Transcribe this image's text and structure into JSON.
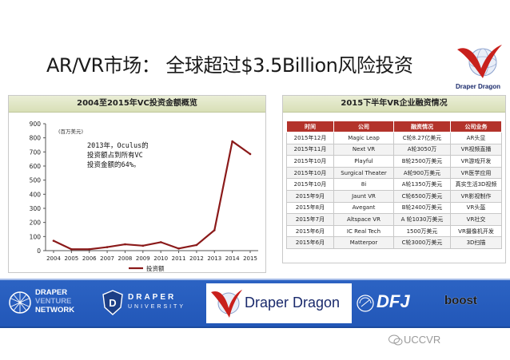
{
  "slide": {
    "title": "AR/VR市场： 全球超过$3.5Billion风险投资",
    "logo_text": "Draper Dragon"
  },
  "chart_data": {
    "type": "line",
    "title": "2004至2015年VC投资金额概览",
    "ylabel": "(百万美元)",
    "xlabel": "",
    "x": [
      "2004",
      "2005",
      "2006",
      "2007",
      "2008",
      "2009",
      "2010",
      "2011",
      "2012",
      "2013",
      "2014",
      "2015"
    ],
    "series": [
      {
        "name": "投资额",
        "values": [
          70,
          10,
          10,
          25,
          45,
          35,
          60,
          15,
          40,
          145,
          775,
          685
        ],
        "color": "#8b1a1a"
      }
    ],
    "ylim": [
      0,
      900
    ],
    "yticks": [
      0,
      100,
      200,
      300,
      400,
      500,
      600,
      700,
      800,
      900
    ],
    "grid": false,
    "legend": "bottom",
    "annotation": "2013年，Oculus的投资额占到所有VC投资金额的64%。"
  },
  "table": {
    "title": "2015下半年VR企业融资情况",
    "headers": [
      "时间",
      "公司",
      "融资情况",
      "公司业务"
    ],
    "rows": [
      [
        "2015年12月",
        "Magic Leap",
        "C轮8.27亿美元",
        "AR头显"
      ],
      [
        "2015年11月",
        "Next VR",
        "A轮3050万",
        "VR视频直播"
      ],
      [
        "2015年10月",
        "Playful",
        "B轮2500万美元",
        "VR游戏开发"
      ],
      [
        "2015年10月",
        "Surgical Theater",
        "A轮900万美元",
        "VR医学应用"
      ],
      [
        "2015年10月",
        "8i",
        "A轮1350万美元",
        "真实生活3D视频"
      ],
      [
        "2015年9月",
        "Jaunt VR",
        "C轮6500万美元",
        "VR影视制作"
      ],
      [
        "2015年8月",
        "Avegant",
        "B轮2400万美元",
        "VR头盔"
      ],
      [
        "2015年7月",
        "Altspace VR",
        "A 轮1030万美元",
        "VR社交"
      ],
      [
        "2015年6月",
        "IC Real Tech",
        "1500万美元",
        "VR摄像机开发"
      ],
      [
        "2015年6月",
        "Matterpor",
        "C轮3000万美元",
        "3D扫描"
      ]
    ]
  },
  "footer": {
    "logos": [
      {
        "id": "draper-venture-network",
        "lines": [
          "DRAPER",
          "VENTURE",
          "NETWORK"
        ]
      },
      {
        "id": "draper-university",
        "lines": [
          "DRAPER",
          "UNIVERSITY"
        ]
      },
      {
        "id": "draper-dragon",
        "lines": [
          "Draper Dragon"
        ]
      },
      {
        "id": "dfj",
        "lines": [
          "DFJ"
        ]
      },
      {
        "id": "boost",
        "lines": [
          "boost"
        ]
      }
    ],
    "watermark": "UCCVR"
  },
  "colors": {
    "accent_red": "#b3332b",
    "line": "#8b1a1a",
    "band_blue": "#2459bb",
    "panel_head": "#dde3bd"
  }
}
